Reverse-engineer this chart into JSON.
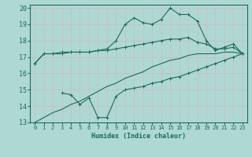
{
  "title": "",
  "xlabel": "Humidex (Indice chaleur)",
  "bg_color": "#aed8d4",
  "grid_color": "#d0eeea",
  "line_color": "#1a6b5a",
  "xlim": [
    -0.5,
    23.5
  ],
  "ylim": [
    13,
    20.2
  ],
  "yticks": [
    13,
    14,
    15,
    16,
    17,
    18,
    19,
    20
  ],
  "xticks": [
    0,
    1,
    2,
    3,
    4,
    5,
    6,
    7,
    8,
    9,
    10,
    11,
    12,
    13,
    14,
    15,
    16,
    17,
    18,
    19,
    20,
    21,
    22,
    23
  ],
  "line1_x": [
    0,
    1,
    2,
    3,
    4,
    5,
    6,
    7,
    8,
    9,
    10,
    11,
    12,
    13,
    14,
    15,
    16,
    17,
    18,
    19,
    20,
    21,
    22,
    23
  ],
  "line1_y": [
    16.6,
    17.2,
    17.2,
    17.3,
    17.3,
    17.3,
    17.3,
    17.4,
    17.4,
    17.5,
    17.6,
    17.7,
    17.8,
    17.9,
    18.0,
    18.1,
    18.1,
    18.2,
    17.9,
    17.8,
    17.5,
    17.5,
    17.6,
    17.2
  ],
  "line2_x": [
    0,
    1,
    2,
    3,
    4,
    5,
    6,
    7,
    8,
    9,
    10,
    11,
    12,
    13,
    14,
    15,
    16,
    17,
    18,
    19,
    20,
    21,
    22,
    23
  ],
  "line2_y": [
    16.6,
    17.2,
    17.2,
    17.2,
    17.3,
    17.3,
    17.3,
    17.4,
    17.5,
    18.0,
    19.0,
    19.4,
    19.1,
    19.0,
    19.3,
    20.0,
    19.6,
    19.6,
    19.2,
    18.0,
    17.4,
    17.6,
    17.8,
    17.2
  ],
  "line3_x": [
    3,
    4,
    5,
    6,
    7,
    8,
    9,
    10,
    11,
    12,
    13,
    14,
    15,
    16,
    17,
    18,
    19,
    20,
    21,
    22,
    23
  ],
  "line3_y": [
    14.8,
    14.7,
    14.1,
    14.5,
    13.3,
    13.3,
    14.6,
    15.0,
    15.1,
    15.2,
    15.4,
    15.5,
    15.7,
    15.8,
    16.0,
    16.2,
    16.4,
    16.6,
    16.8,
    17.0,
    17.2
  ],
  "line4_x": [
    0,
    1,
    2,
    3,
    4,
    5,
    6,
    7,
    8,
    9,
    10,
    11,
    12,
    13,
    14,
    15,
    16,
    17,
    18,
    19,
    20,
    21,
    22,
    23
  ],
  "line4_y": [
    13.0,
    13.3,
    13.6,
    13.8,
    14.1,
    14.3,
    14.6,
    14.9,
    15.2,
    15.4,
    15.7,
    15.9,
    16.1,
    16.4,
    16.6,
    16.8,
    16.9,
    17.1,
    17.2,
    17.2,
    17.2,
    17.3,
    17.3,
    17.2
  ]
}
